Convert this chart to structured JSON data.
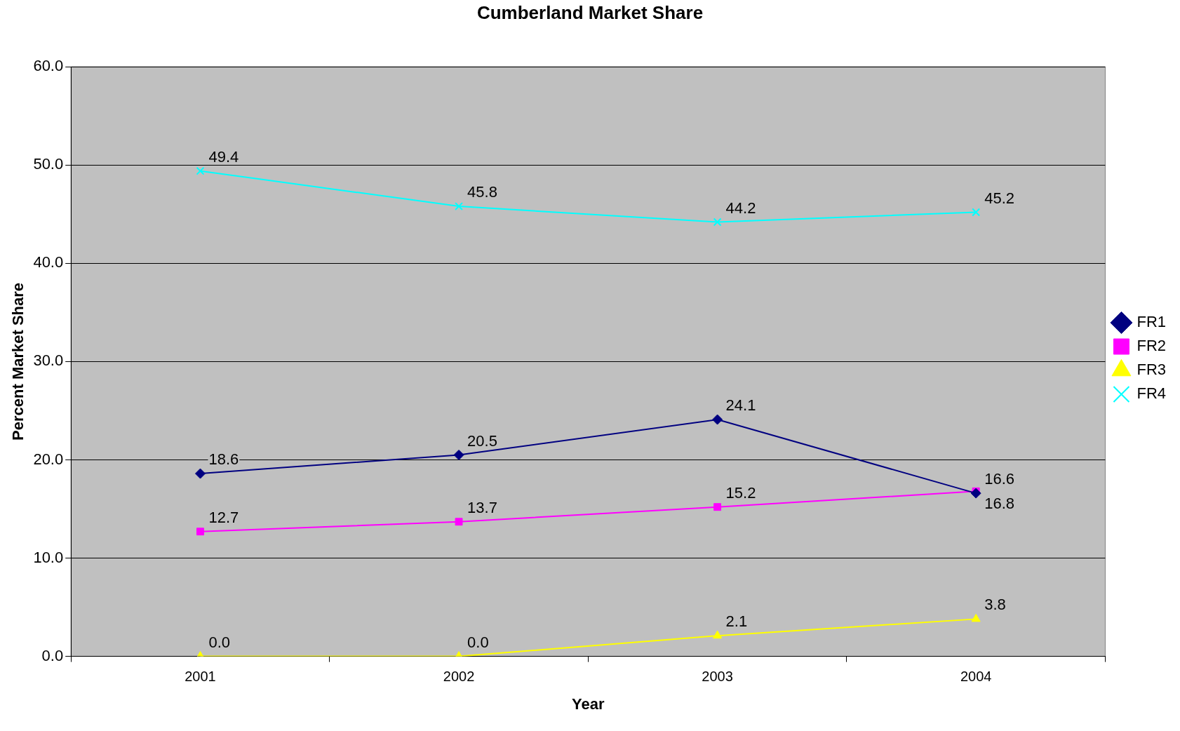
{
  "chart_data": {
    "type": "line",
    "title": "Cumberland Market Share",
    "xlabel": "Year",
    "ylabel": "Percent Market Share",
    "categories": [
      "2001",
      "2002",
      "2003",
      "2004"
    ],
    "series": [
      {
        "name": "FR1",
        "color": "#000080",
        "marker": "diamond",
        "values": [
          18.6,
          20.5,
          24.1,
          16.6
        ],
        "value_labels": [
          "18.6",
          "20.5",
          "24.1",
          "16.6"
        ]
      },
      {
        "name": "FR2",
        "color": "#ff00ff",
        "marker": "square",
        "values": [
          12.7,
          13.7,
          15.2,
          16.8
        ],
        "value_labels": [
          "12.7",
          "13.7",
          "15.2",
          "16.8"
        ]
      },
      {
        "name": "FR3",
        "color": "#ffff00",
        "marker": "triangle",
        "values": [
          0.0,
          0.0,
          2.1,
          3.8
        ],
        "value_labels": [
          "0.0",
          "0.0",
          "2.1",
          "3.8"
        ]
      },
      {
        "name": "FR4",
        "color": "#00ffff",
        "marker": "cross",
        "values": [
          49.4,
          45.8,
          44.2,
          45.2
        ],
        "value_labels": [
          "49.4",
          "45.8",
          "44.2",
          "45.2"
        ]
      }
    ],
    "ylim": [
      0,
      60
    ],
    "yticks": [
      {
        "value": 0,
        "label": "0.0"
      },
      {
        "value": 10,
        "label": "10.0"
      },
      {
        "value": 20,
        "label": "20.0"
      },
      {
        "value": 30,
        "label": "30.0"
      },
      {
        "value": 40,
        "label": "40.0"
      },
      {
        "value": 50,
        "label": "50.0"
      },
      {
        "value": 60,
        "label": "60.0"
      }
    ],
    "grid": "y",
    "legend": "right"
  }
}
